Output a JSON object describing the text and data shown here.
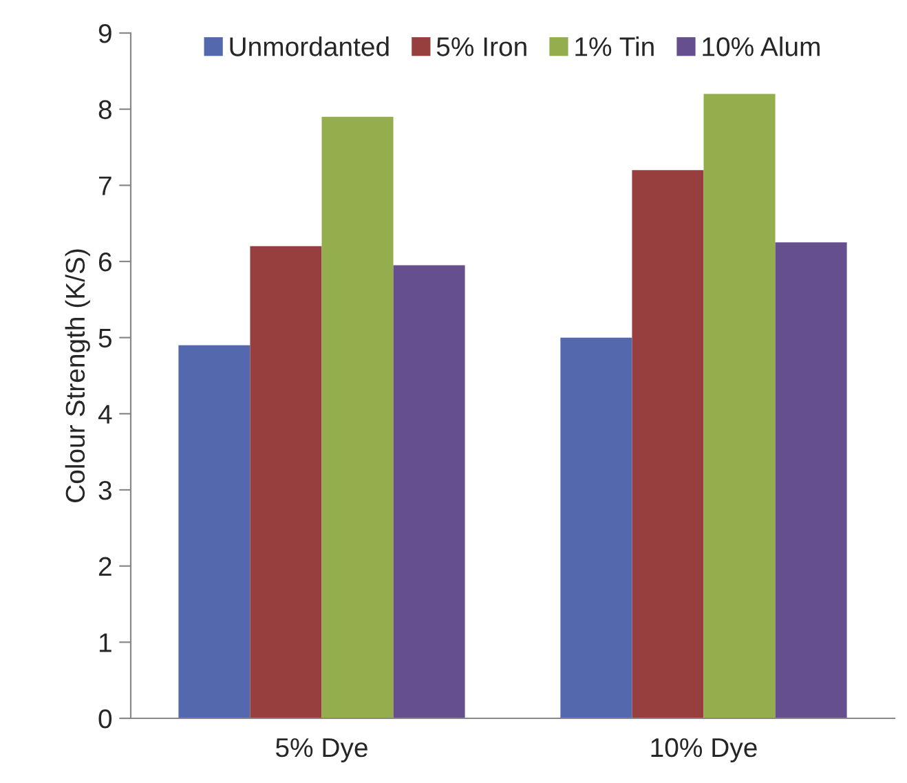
{
  "chart_data": {
    "type": "bar",
    "ylabel": "Colour Strength (K/S)",
    "categories": [
      "5% Dye",
      "10% Dye"
    ],
    "series": [
      {
        "name": "Unmordanted",
        "color": "#5469ad",
        "values": [
          4.9,
          5.0
        ]
      },
      {
        "name": "5% Iron",
        "color": "#973f3e",
        "values": [
          6.2,
          7.2
        ]
      },
      {
        "name": "1% Tin",
        "color": "#94ae4d",
        "values": [
          7.9,
          8.2
        ]
      },
      {
        "name": "10% Alum",
        "color": "#664f8e",
        "values": [
          5.95,
          6.25
        ]
      }
    ],
    "ylim": [
      0,
      9
    ],
    "yticks": [
      0,
      1,
      2,
      3,
      4,
      5,
      6,
      7,
      8,
      9
    ],
    "grid": false,
    "legend": "top"
  }
}
